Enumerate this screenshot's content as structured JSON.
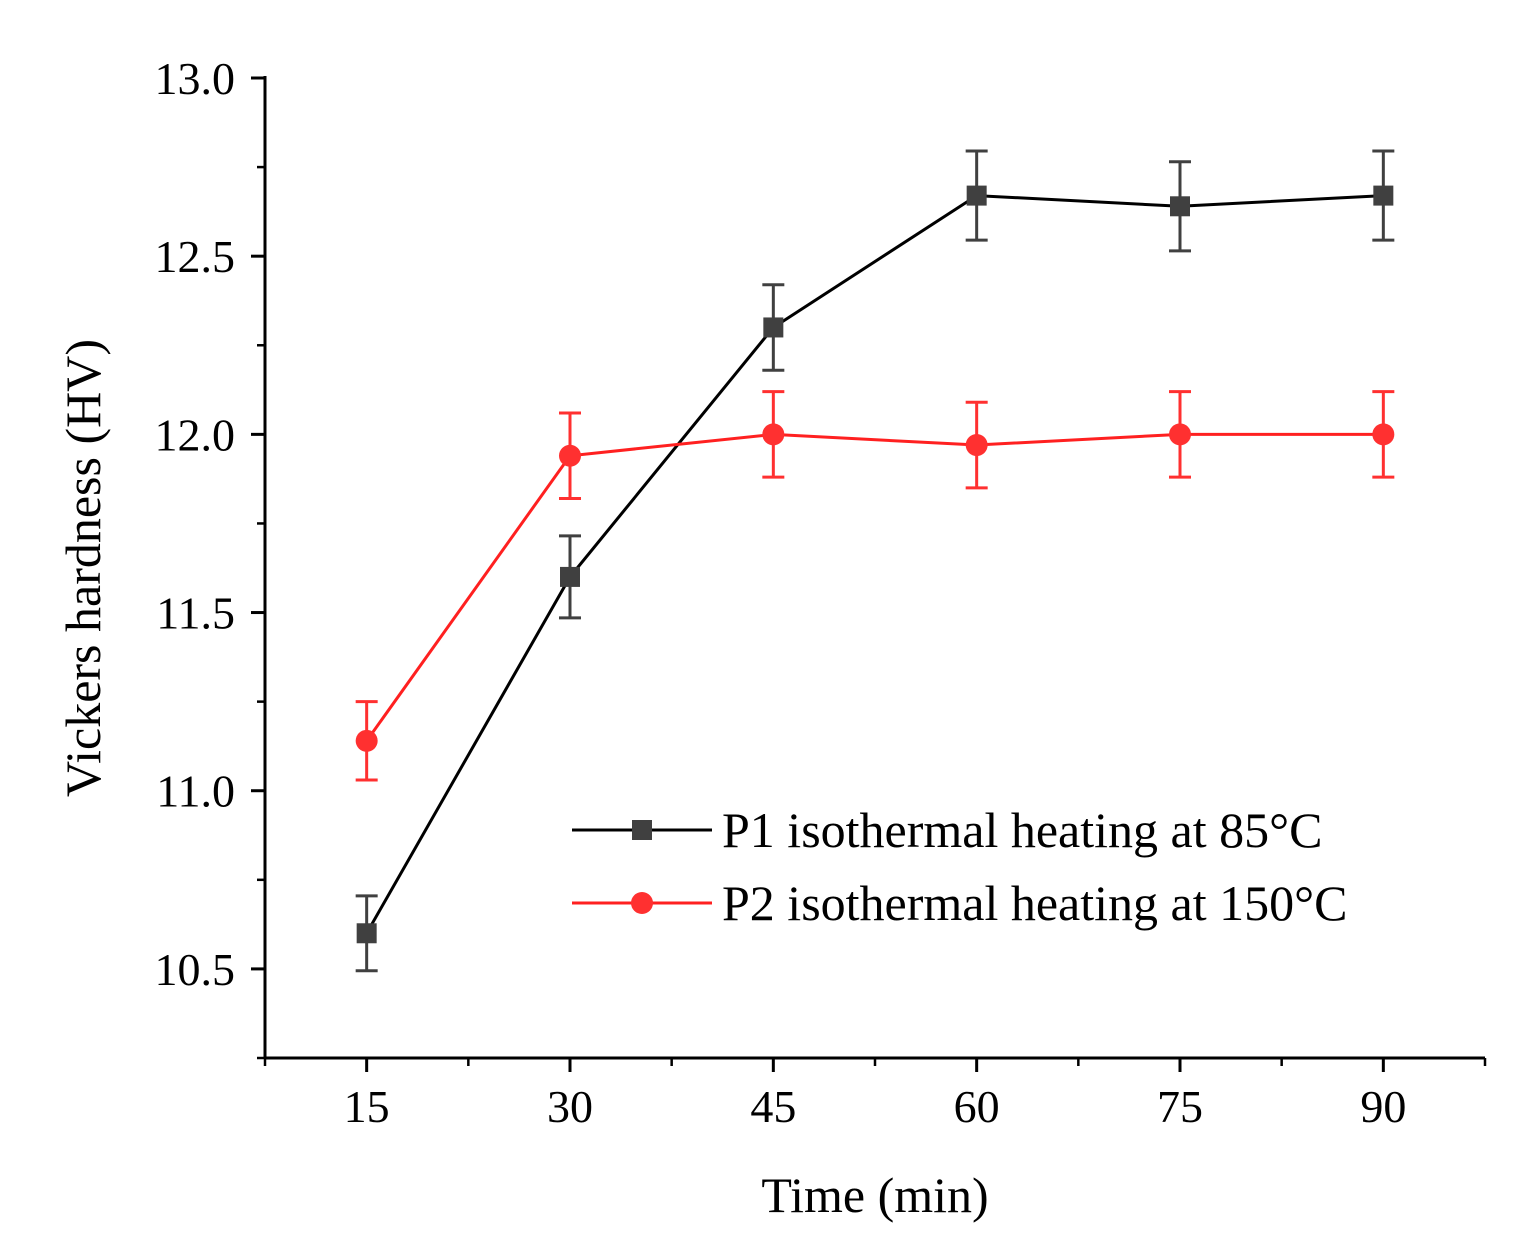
{
  "chart_data": {
    "type": "line",
    "title": "",
    "xlabel": "Time (min)",
    "ylabel": "Vickers hardness (HV)",
    "xlim": [
      7.5,
      97.5
    ],
    "ylim": [
      10.25,
      13.0
    ],
    "x_ticks": [
      15,
      30,
      45,
      60,
      75,
      90
    ],
    "x_tick_labels": [
      "15",
      "30",
      "45",
      "60",
      "75",
      "90"
    ],
    "y_ticks": [
      10.5,
      11.0,
      11.5,
      12.0,
      12.5,
      13.0
    ],
    "y_tick_labels": [
      "10.5",
      "11.0",
      "11.5",
      "12.0",
      "12.5",
      "13.0"
    ],
    "grid": false,
    "legend_position": "bottom-right",
    "series": [
      {
        "name": "P1 isothermal heating at 85°C",
        "color": "#000000",
        "marker_color": "#404040",
        "marker": "square",
        "x": [
          15,
          30,
          45,
          60,
          75,
          90
        ],
        "y": [
          10.6,
          11.6,
          12.3,
          12.67,
          12.64,
          12.67
        ],
        "error": [
          0.105,
          0.115,
          0.12,
          0.125,
          0.125,
          0.125
        ]
      },
      {
        "name": "P2 isothermal heating at 150°C",
        "color": "#ff2020",
        "marker_color": "#ff3030",
        "marker": "circle",
        "x": [
          15,
          30,
          45,
          60,
          75,
          90
        ],
        "y": [
          11.14,
          11.94,
          12.0,
          11.97,
          12.0,
          12.0
        ],
        "error": [
          0.11,
          0.12,
          0.12,
          0.12,
          0.12,
          0.12
        ]
      }
    ]
  }
}
